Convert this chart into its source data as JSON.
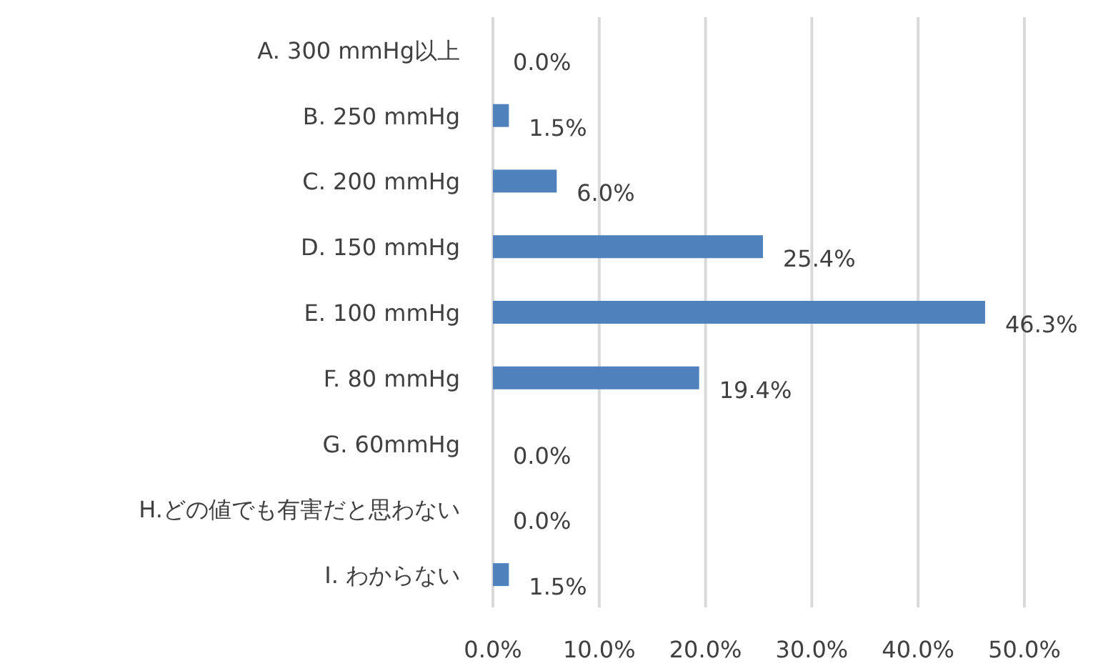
{
  "chart_data": {
    "type": "bar",
    "orientation": "horizontal",
    "categories": [
      "A. 300 mmHg以上",
      "B. 250 mmHg",
      "C. 200 mmHg",
      "D. 150 mmHg",
      "E. 100 mmHg",
      "F. 80 mmHg",
      "G. 60mmHg",
      "H.どの値でも有害だと思わない",
      "I. わからない"
    ],
    "values": [
      0.0,
      1.5,
      6.0,
      25.4,
      46.3,
      19.4,
      0.0,
      0.0,
      1.5
    ],
    "value_labels": [
      "0.0%",
      "1.5%",
      "6.0%",
      "25.4%",
      "46.3%",
      "19.4%",
      "0.0%",
      "0.0%",
      "1.5%"
    ],
    "color": "#4f81bd",
    "xlim": [
      0,
      50
    ],
    "xticks": [
      {
        "value": 0,
        "label": "0.0%"
      },
      {
        "value": 10,
        "label": "10.0%"
      },
      {
        "value": 20,
        "label": "20.0%"
      },
      {
        "value": 30,
        "label": "30.0%"
      },
      {
        "value": 40,
        "label": "40.0%"
      },
      {
        "value": 50,
        "label": "50.0%"
      }
    ],
    "grid": "x"
  }
}
